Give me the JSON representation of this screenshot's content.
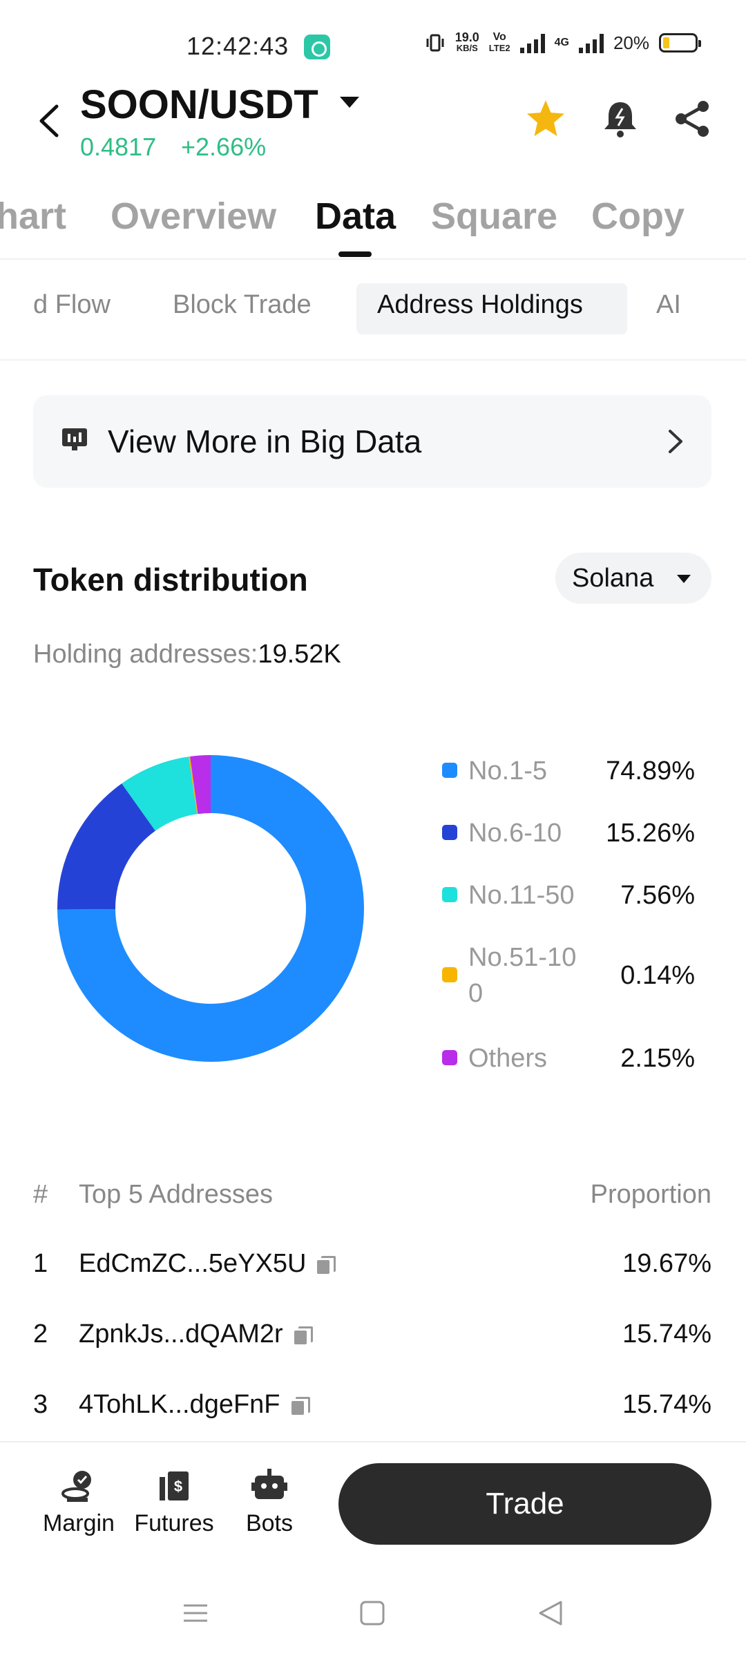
{
  "status": {
    "time": "12:42:43",
    "net_speed_value": "19.0",
    "net_speed_unit": "KB/S",
    "volte_top": "Vo",
    "volte_bottom": "LTE2",
    "network_type": "4G",
    "battery": "20%"
  },
  "header": {
    "pair": "SOON/USDT",
    "price": "0.4817",
    "change": "+2.66%"
  },
  "main_tabs": [
    "hart",
    "Overview",
    "Data",
    "Square",
    "Copy"
  ],
  "sub_tabs": [
    "d Flow",
    "Block Trade",
    "Address Holdings",
    "AI"
  ],
  "big_data": {
    "label": "View More in Big Data"
  },
  "distribution": {
    "title": "Token distribution",
    "chain": "Solana",
    "holding_label": "Holding addresses:",
    "holding_value": "19.52K"
  },
  "colors": {
    "up": "#2ebd85",
    "accent_star": "#f5b70f",
    "no1_5": "#1e8cff",
    "no6_10": "#2443d6",
    "no11_50": "#1ee0dc",
    "no51_100": "#f7b500",
    "others": "#b92ee8"
  },
  "chart_data": {
    "type": "pie",
    "categories": [
      "No.1-5",
      "No.6-10",
      "No.11-50",
      "No.51-100",
      "Others"
    ],
    "values": [
      74.89,
      15.26,
      7.56,
      0.14,
      2.15
    ],
    "value_labels": [
      "74.89%",
      "15.26%",
      "7.56%",
      "0.14%",
      "2.15%"
    ],
    "legend_display": [
      "No.1-5",
      "No.6-10",
      "No.11-50",
      "No.51-10\n0",
      "Others"
    ],
    "legend_placement": "right",
    "donut": true
  },
  "table": {
    "col_rank": "#",
    "col_address": "Top 5 Addresses",
    "col_proportion": "Proportion",
    "rows": [
      {
        "rank": "1",
        "address": "EdCmZC...5eYX5U",
        "proportion": "19.67%"
      },
      {
        "rank": "2",
        "address": "ZpnkJs...dQAM2r",
        "proportion": "15.74%"
      },
      {
        "rank": "3",
        "address": "4TohLK...dgeFnF",
        "proportion": "15.74%"
      }
    ]
  },
  "bottom_bar": {
    "margin": "Margin",
    "futures": "Futures",
    "bots": "Bots",
    "trade": "Trade"
  }
}
